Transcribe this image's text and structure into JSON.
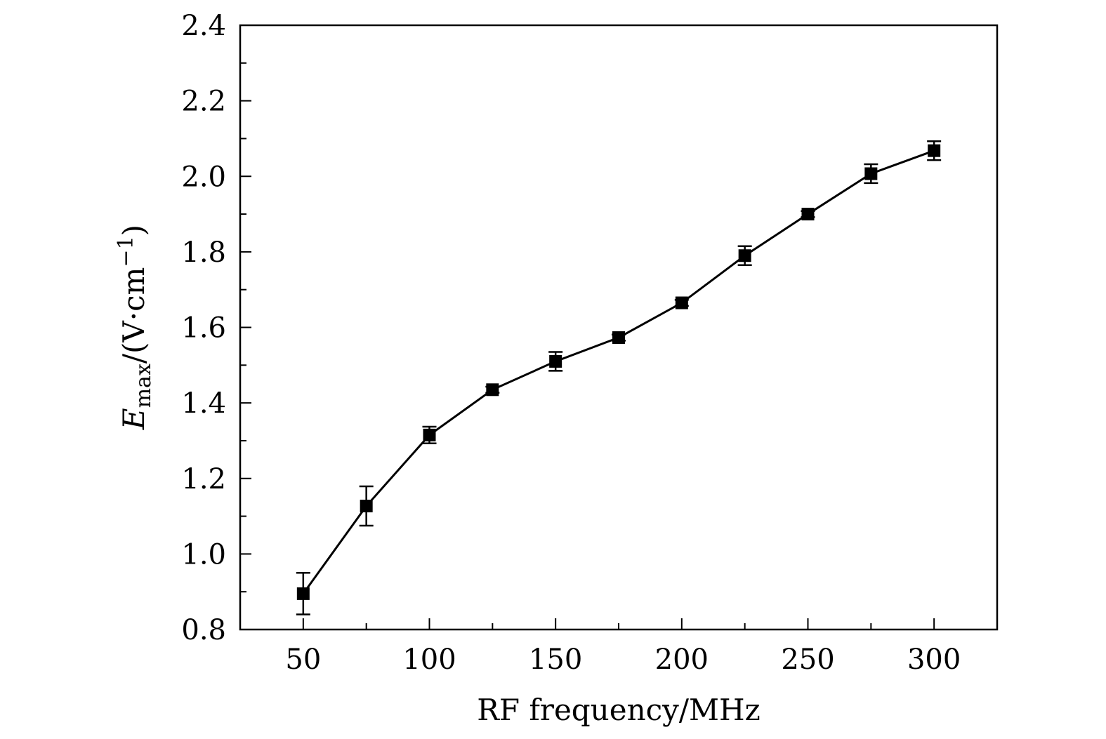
{
  "chart_data": {
    "type": "scatter",
    "connected": true,
    "marker": "square",
    "error_bars": true,
    "title": "",
    "xlabel": "RF frequency/MHz",
    "ylabel": {
      "symbol": "E",
      "subscript": "max",
      "unit_prefix": "/(V·cm",
      "unit_exponent": "−1",
      "unit_suffix": ")"
    },
    "xlim": [
      25,
      325
    ],
    "ylim": [
      0.8,
      2.4
    ],
    "xticks": [
      50,
      100,
      150,
      200,
      250,
      300
    ],
    "xtick_labels": [
      "50",
      "100",
      "150",
      "200",
      "250",
      "300"
    ],
    "yticks": [
      0.8,
      1.0,
      1.2,
      1.4,
      1.6,
      1.8,
      2.0,
      2.2,
      2.4
    ],
    "ytick_labels": [
      "0.8",
      "1.0",
      "1.2",
      "1.4",
      "1.6",
      "1.8",
      "2.0",
      "2.2",
      "2.4"
    ],
    "grid": false,
    "legend": "none",
    "color": "#000000",
    "x": [
      50,
      75,
      100,
      125,
      150,
      175,
      200,
      225,
      250,
      275,
      300
    ],
    "y": [
      0.895,
      1.127,
      1.315,
      1.435,
      1.51,
      1.573,
      1.665,
      1.79,
      1.9,
      2.007,
      2.068
    ],
    "yerr": [
      0.055,
      0.052,
      0.022,
      0.008,
      0.025,
      0.008,
      0.008,
      0.025,
      0.008,
      0.025,
      0.025
    ]
  }
}
